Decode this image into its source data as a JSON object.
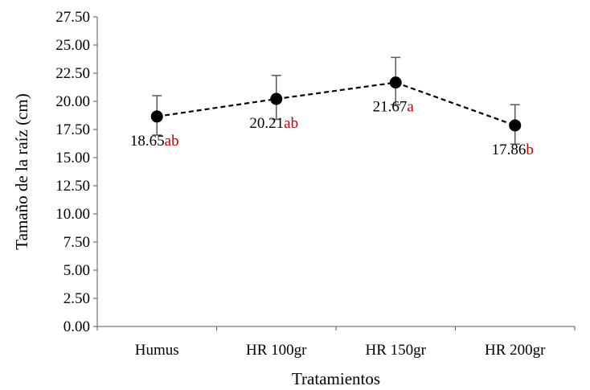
{
  "chart_data": {
    "type": "line",
    "title": "",
    "xlabel": "Tratamientos",
    "ylabel": "Tamaño de la raíz (cm)",
    "categories": [
      "Humus",
      "HR 100gr",
      "HR 150gr",
      "HR 200gr"
    ],
    "series": [
      {
        "values": [
          18.65,
          20.21,
          21.67,
          17.86
        ],
        "error_low": [
          17.0,
          18.4,
          19.7,
          16.2
        ],
        "error_high": [
          20.5,
          22.3,
          23.9,
          19.7
        ],
        "value_labels": [
          "18.65",
          "20.21",
          "21.67",
          "17.86"
        ],
        "letter_labels": [
          "ab",
          "ab",
          "a",
          "b"
        ],
        "label_position": [
          "below",
          "below",
          "below",
          "below"
        ],
        "marker": "circle",
        "marker_color": "#000000",
        "line_style": "dashed",
        "line_color": "#000000"
      }
    ],
    "ylim": [
      0,
      27.5
    ],
    "yticks": [
      "0.00",
      "2.50",
      "5.00",
      "7.50",
      "10.00",
      "12.50",
      "15.00",
      "17.50",
      "20.00",
      "22.50",
      "25.00",
      "27.50"
    ],
    "grid": false,
    "legend": "none",
    "colors": {
      "letters": "#c00000",
      "errorbars": "#595959",
      "axis": "#595959",
      "text": "#000000"
    }
  }
}
